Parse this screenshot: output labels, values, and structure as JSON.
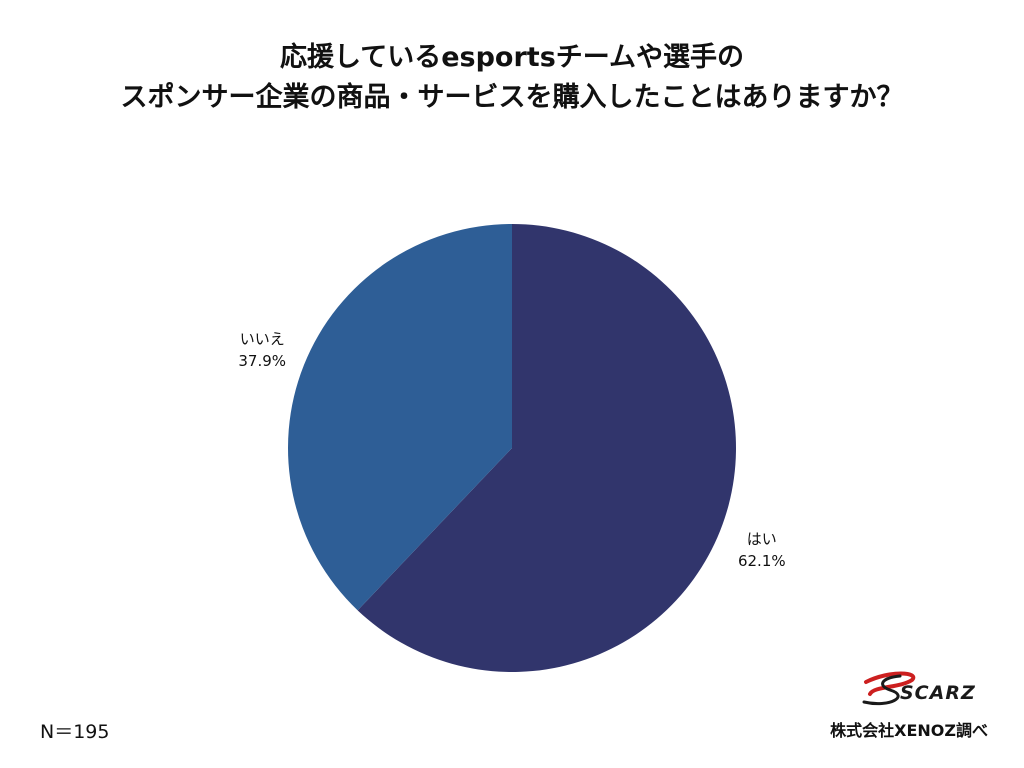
{
  "chart_data": {
    "type": "pie",
    "title": [
      "応援しているesportsチームや選手の",
      "スポンサー企業の商品・サービスを購入したことはありますか？"
    ],
    "categories": [
      "はい",
      "いいえ"
    ],
    "values": [
      62.1,
      37.9
    ],
    "value_labels": [
      "62.1%",
      "37.9%"
    ],
    "colors": [
      "#31356c",
      "#2e5e96"
    ],
    "start_angle": "12 o'clock",
    "direction": "clockwise"
  },
  "footnote": "N＝195",
  "source": "株式会社XENOZ調べ",
  "logo": {
    "text": "SCARZ",
    "accent_color": "#cc1f1f"
  }
}
